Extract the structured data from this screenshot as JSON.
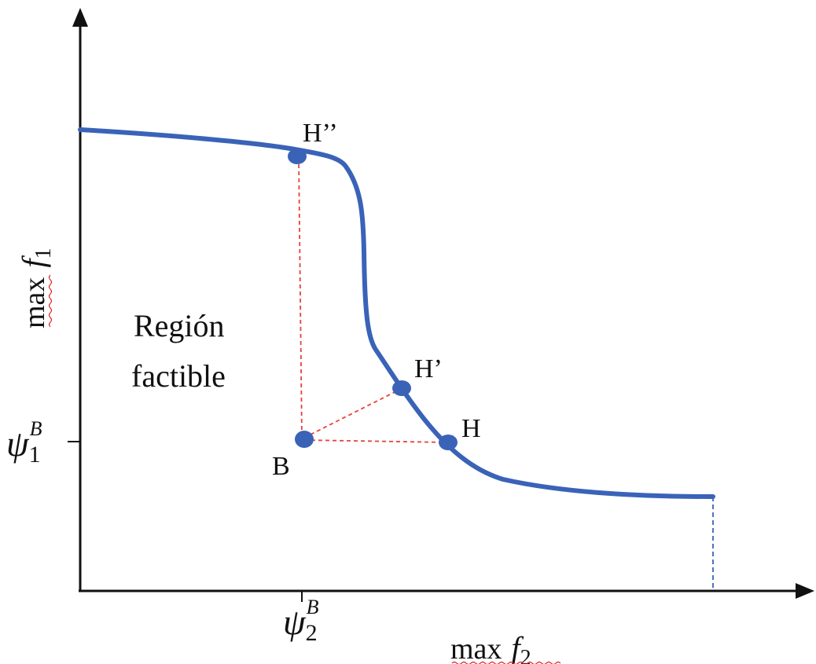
{
  "region_label": {
    "line1": "Región",
    "line2": "factible"
  },
  "points": {
    "H2": "H’’",
    "H1": "H’",
    "H": "H",
    "B": "B"
  },
  "y_axis": {
    "label_word": "max",
    "label_var": "f",
    "label_sub": "1",
    "tick_symbol": "ψ",
    "tick_sub": "1",
    "tick_sup": "B"
  },
  "x_axis": {
    "label_word": "max",
    "label_var": "f",
    "label_sub": "2",
    "tick_symbol": "ψ",
    "tick_sub": "2",
    "tick_sup": "B"
  },
  "colors": {
    "curve": "#3a63b8",
    "point": "#3a63b8",
    "guide_line": "#e8413a",
    "axis": "#111111",
    "end_guide": "#3a63b8",
    "spell_underline": "#e02020"
  }
}
